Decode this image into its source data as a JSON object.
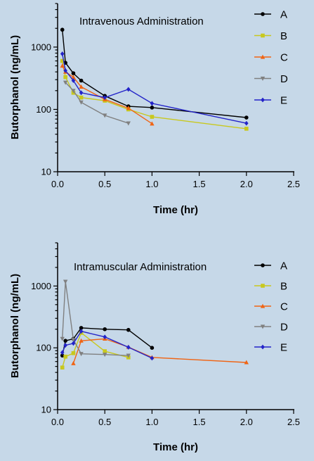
{
  "chart_data": [
    {
      "type": "line",
      "title": "Intravenous Administration",
      "xlabel": "Time (hr)",
      "ylabel": "Butorphanol (ng/mL)",
      "xlim": [
        0,
        2.5
      ],
      "ylim": [
        10,
        5000
      ],
      "yscale": "log",
      "xticks": [
        "0.0",
        "0.5",
        "1.0",
        "1.5",
        "2.0",
        "2.5"
      ],
      "yticks": [
        "10",
        "100",
        "1000"
      ],
      "grid": false,
      "legend": "top-right",
      "series": [
        {
          "name": "A",
          "color": "#000000",
          "marker": "circle",
          "x": [
            0.05,
            0.083,
            0.167,
            0.25,
            0.5,
            0.75,
            1.0,
            2.0
          ],
          "y": [
            1900,
            560,
            380,
            290,
            165,
            112,
            107,
            74
          ]
        },
        {
          "name": "B",
          "color": "#c8c81e",
          "marker": "square",
          "x": [
            0.05,
            0.083,
            0.167,
            0.25,
            0.5,
            0.75,
            1.0,
            2.0
          ],
          "y": [
            600,
            330,
            185,
            155,
            138,
            100,
            76,
            49
          ]
        },
        {
          "name": "C",
          "color": "#f06414",
          "marker": "triangle",
          "x": [
            0.05,
            0.083,
            0.167,
            0.25,
            0.5,
            0.75,
            1.0
          ],
          "y": [
            500,
            400,
            330,
            230,
            145,
            105,
            59
          ]
        },
        {
          "name": "D",
          "color": "#808080",
          "marker": "triangle-down",
          "x": [
            0.083,
            0.167,
            0.25,
            0.5,
            0.75
          ],
          "y": [
            270,
            200,
            130,
            80,
            60
          ]
        },
        {
          "name": "E",
          "color": "#2323c8",
          "marker": "diamond",
          "x": [
            0.05,
            0.083,
            0.167,
            0.25,
            0.5,
            0.75,
            1.0,
            2.0
          ],
          "y": [
            780,
            420,
            290,
            185,
            155,
            210,
            125,
            60
          ]
        }
      ]
    },
    {
      "type": "line",
      "title": "Intramuscular Administration",
      "xlabel": "Time (hr)",
      "ylabel": "Butorphanol (ng/mL)",
      "xlim": [
        0,
        2.5
      ],
      "ylim": [
        10,
        5000
      ],
      "yscale": "log",
      "xticks": [
        "0.0",
        "0.5",
        "1.0",
        "1.5",
        "2.0",
        "2.5"
      ],
      "yticks": [
        "10",
        "100",
        "1000"
      ],
      "grid": false,
      "legend": "top-right",
      "series": [
        {
          "name": "A",
          "color": "#000000",
          "marker": "circle",
          "x": [
            0.05,
            0.083,
            0.167,
            0.25,
            0.5,
            0.75,
            1.0
          ],
          "y": [
            75,
            130,
            140,
            210,
            200,
            195,
            100
          ]
        },
        {
          "name": "B",
          "color": "#c8c81e",
          "marker": "square",
          "x": [
            0.05,
            0.083,
            0.167,
            0.25,
            0.5,
            0.75
          ],
          "y": [
            48,
            72,
            82,
            175,
            88,
            70
          ]
        },
        {
          "name": "C",
          "color": "#f06414",
          "marker": "triangle",
          "x": [
            0.167,
            0.25,
            0.5,
            0.75,
            1.0,
            2.0
          ],
          "y": [
            56,
            130,
            140,
            103,
            70,
            58
          ]
        },
        {
          "name": "D",
          "color": "#808080",
          "marker": "triangle-down",
          "x": [
            0.05,
            0.083,
            0.167,
            0.25,
            0.5,
            0.75
          ],
          "y": [
            140,
            1180,
            135,
            80,
            78,
            75
          ]
        },
        {
          "name": "E",
          "color": "#2323c8",
          "marker": "diamond",
          "x": [
            0.05,
            0.083,
            0.167,
            0.25,
            0.5,
            0.75,
            1.0
          ],
          "y": [
            84,
            110,
            118,
            185,
            150,
            102,
            68
          ]
        }
      ]
    }
  ]
}
